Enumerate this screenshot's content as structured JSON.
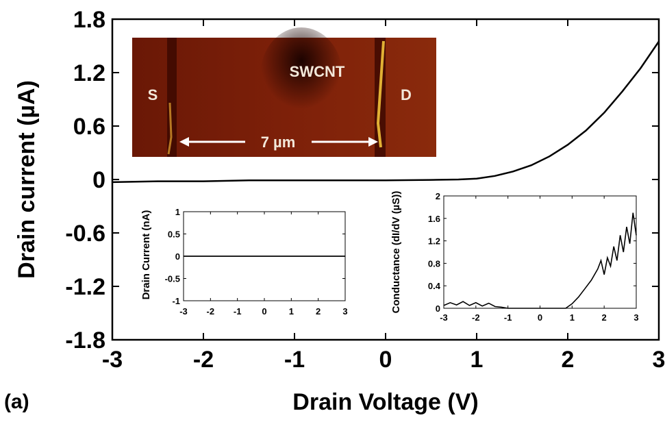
{
  "panel_label": "(a)",
  "chart_data": [
    {
      "type": "line",
      "role": "main",
      "xlabel": "Drain Voltage (V)",
      "ylabel": "Drain current (µA)",
      "xlim": [
        -3,
        3
      ],
      "ylim": [
        -1.8,
        1.8
      ],
      "xticks": [
        "-3",
        "-2",
        "-1",
        "0",
        "1",
        "2",
        "3"
      ],
      "yticks": [
        "1.8",
        "1.2",
        "0.6",
        "0",
        "-0.6",
        "-1.2",
        "-1.8"
      ],
      "grid": false,
      "series": [
        {
          "x": [
            -3,
            -2.5,
            -2,
            -1.5,
            -1,
            -0.5,
            0,
            0.5,
            0.8,
            1.0,
            1.2,
            1.4,
            1.6,
            1.8,
            2.0,
            2.2,
            2.4,
            2.6,
            2.8,
            3.0
          ],
          "y": [
            -0.03,
            -0.02,
            -0.02,
            -0.01,
            -0.01,
            -0.01,
            -0.01,
            -0.005,
            0.0,
            0.01,
            0.04,
            0.09,
            0.16,
            0.26,
            0.39,
            0.55,
            0.75,
            0.99,
            1.25,
            1.55
          ]
        }
      ]
    },
    {
      "type": "line",
      "role": "inset-left",
      "ylabel": "Drain Current (nA)",
      "xlim": [
        -3,
        3
      ],
      "ylim": [
        -1,
        1
      ],
      "xticks": [
        "-3",
        "-2",
        "-1",
        "0",
        "1",
        "2",
        "3"
      ],
      "yticks": [
        "1",
        "0.5",
        "0",
        "-0.5",
        "-1"
      ],
      "series": [
        {
          "x": [
            -3,
            3
          ],
          "y": [
            0,
            0
          ]
        }
      ]
    },
    {
      "type": "line",
      "role": "inset-right",
      "ylabel": "Conductance (dI/dV (µS))",
      "xlim": [
        -3,
        3
      ],
      "ylim": [
        0,
        2
      ],
      "xticks": [
        "-3",
        "-2",
        "-1",
        "0",
        "1",
        "2",
        "3"
      ],
      "yticks": [
        "2",
        "1.6",
        "1.2",
        "0.8",
        "0.4",
        "0"
      ],
      "series": [
        {
          "x": [
            -3,
            -2.8,
            -2.6,
            -2.4,
            -2.2,
            -2.0,
            -1.8,
            -1.6,
            -1.4,
            -1.2,
            -1.0,
            -0.5,
            0,
            0.5,
            0.8,
            1.0,
            1.2,
            1.4,
            1.6,
            1.8,
            1.9,
            2.0,
            2.1,
            2.2,
            2.3,
            2.4,
            2.5,
            2.6,
            2.7,
            2.8,
            2.9,
            3.0
          ],
          "y": [
            0.05,
            0.1,
            0.06,
            0.12,
            0.05,
            0.1,
            0.04,
            0.09,
            0.03,
            0.02,
            0.0,
            0.0,
            0.0,
            0.0,
            0.0,
            0.08,
            0.2,
            0.35,
            0.5,
            0.7,
            0.85,
            0.6,
            0.9,
            0.75,
            1.1,
            0.85,
            1.3,
            1.0,
            1.45,
            1.15,
            1.7,
            1.3
          ]
        }
      ]
    }
  ],
  "afm_inset": {
    "labels": {
      "source": "S",
      "tube": "SWCNT",
      "drain": "D",
      "scale": "7 µm"
    },
    "colors": {
      "background": "#7a1d08",
      "dark": "#2a0500",
      "bright": "#f2c23a"
    }
  }
}
